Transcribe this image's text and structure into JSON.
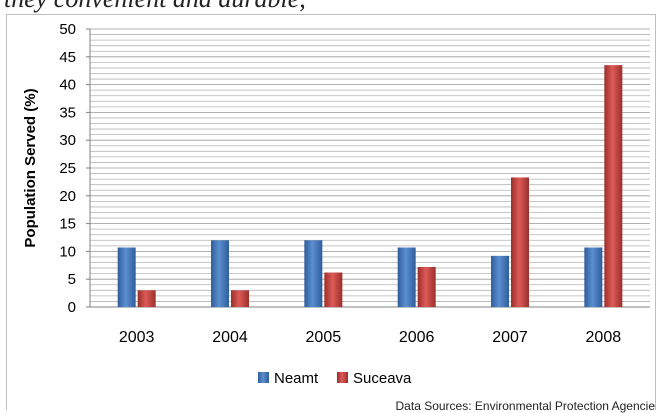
{
  "caption_fragment": "they convenient and durable,",
  "chart_data": {
    "type": "bar",
    "title": "",
    "xlabel": "",
    "ylabel": "Population Served (%)",
    "categories": [
      "2003",
      "2004",
      "2005",
      "2006",
      "2007",
      "2008"
    ],
    "series": [
      {
        "name": "Neamt",
        "color": "#4f81bd",
        "values": [
          10.7,
          12.0,
          12.0,
          10.7,
          9.2,
          10.7
        ]
      },
      {
        "name": "Suceava",
        "color": "#c0504d",
        "values": [
          3.0,
          3.0,
          6.2,
          7.2,
          23.3,
          43.5
        ]
      }
    ],
    "ylim": [
      0,
      50
    ],
    "yticks": [
      "0",
      "5",
      "10",
      "15",
      "20",
      "25",
      "30",
      "35",
      "40",
      "45",
      "50"
    ],
    "grid": true,
    "legend_position": "bottom"
  },
  "source_note": "Data Sources: Environmental Protection Agencie"
}
